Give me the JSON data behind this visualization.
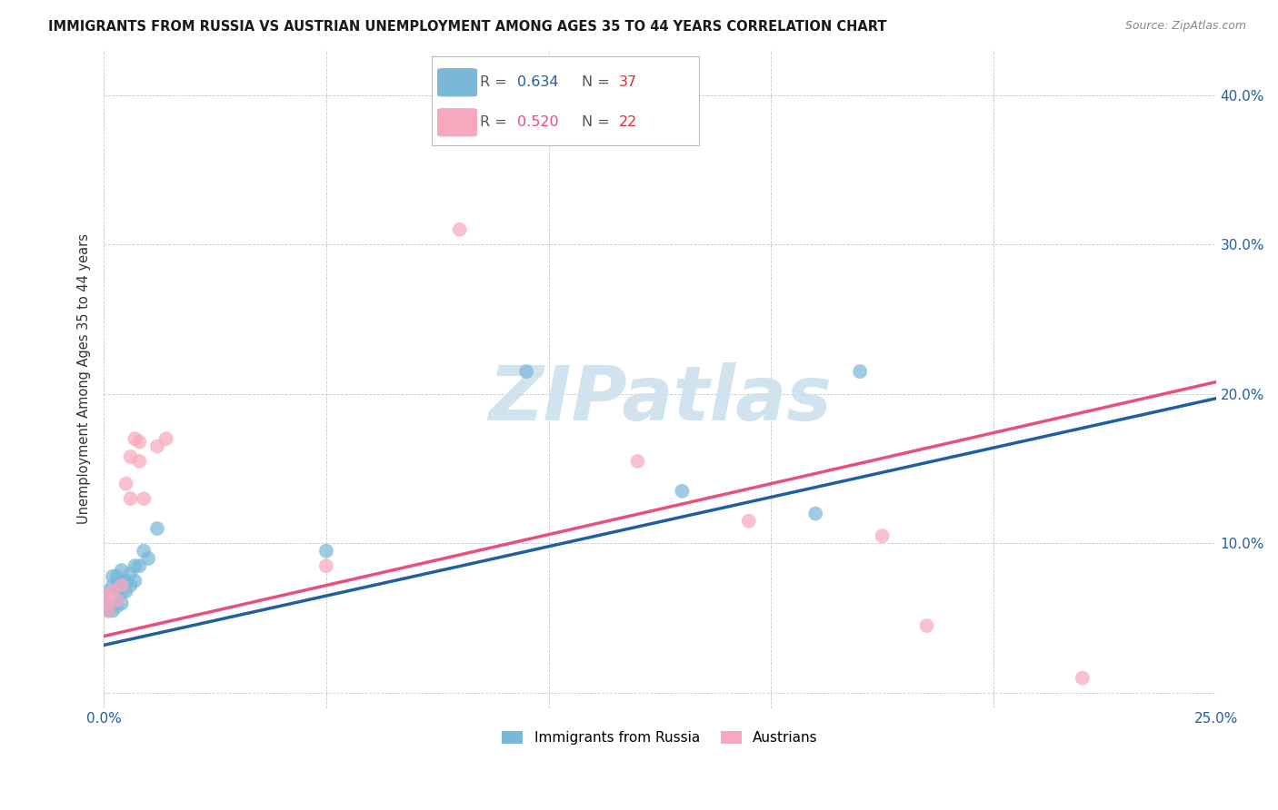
{
  "title": "IMMIGRANTS FROM RUSSIA VS AUSTRIAN UNEMPLOYMENT AMONG AGES 35 TO 44 YEARS CORRELATION CHART",
  "source": "Source: ZipAtlas.com",
  "ylabel": "Unemployment Among Ages 35 to 44 years",
  "xlim": [
    0.0,
    0.25
  ],
  "ylim": [
    -0.01,
    0.43
  ],
  "xtick_vals": [
    0.0,
    0.05,
    0.1,
    0.15,
    0.2,
    0.25
  ],
  "ytick_vals": [
    0.0,
    0.1,
    0.2,
    0.3,
    0.4
  ],
  "blue_R": "0.634",
  "blue_N": "37",
  "pink_R": "0.520",
  "pink_N": "22",
  "blue_dot_color": "#7ab8d9",
  "pink_dot_color": "#f7a8bf",
  "blue_line_color": "#2060a0",
  "pink_line_color": "#e8507a",
  "dashed_line_color": "#bbbbbb",
  "legend_label_blue": "Immigrants from Russia",
  "legend_label_pink": "Austrians",
  "blue_R_color": "#2060a0",
  "pink_R_color": "#e8507a",
  "N_blue_color": "#e03030",
  "N_pink_color": "#e03030",
  "blue_points_x": [
    0.0005,
    0.0008,
    0.001,
    0.001,
    0.001,
    0.0013,
    0.0015,
    0.0015,
    0.002,
    0.002,
    0.002,
    0.002,
    0.002,
    0.0025,
    0.003,
    0.003,
    0.003,
    0.003,
    0.004,
    0.004,
    0.004,
    0.004,
    0.005,
    0.005,
    0.006,
    0.006,
    0.007,
    0.007,
    0.008,
    0.009,
    0.01,
    0.012,
    0.05,
    0.095,
    0.13,
    0.16,
    0.17
  ],
  "blue_points_y": [
    0.056,
    0.06,
    0.055,
    0.062,
    0.068,
    0.058,
    0.06,
    0.065,
    0.055,
    0.06,
    0.065,
    0.072,
    0.078,
    0.062,
    0.058,
    0.065,
    0.07,
    0.078,
    0.06,
    0.067,
    0.074,
    0.082,
    0.068,
    0.075,
    0.072,
    0.08,
    0.075,
    0.085,
    0.085,
    0.095,
    0.09,
    0.11,
    0.095,
    0.215,
    0.135,
    0.12,
    0.215
  ],
  "pink_points_x": [
    0.0005,
    0.001,
    0.001,
    0.002,
    0.003,
    0.004,
    0.005,
    0.006,
    0.006,
    0.007,
    0.008,
    0.008,
    0.009,
    0.012,
    0.014,
    0.05,
    0.08,
    0.12,
    0.145,
    0.175,
    0.185,
    0.22
  ],
  "pink_points_y": [
    0.06,
    0.055,
    0.065,
    0.068,
    0.062,
    0.072,
    0.14,
    0.13,
    0.158,
    0.17,
    0.155,
    0.168,
    0.13,
    0.165,
    0.17,
    0.085,
    0.31,
    0.155,
    0.115,
    0.105,
    0.045,
    0.01
  ],
  "watermark_text": "ZIPatlas",
  "background_color": "#ffffff",
  "grid_color": "#c8c8c8",
  "title_color": "#1a1a1a",
  "axis_tick_color": "#2060a0",
  "ylabel_color": "#333333"
}
